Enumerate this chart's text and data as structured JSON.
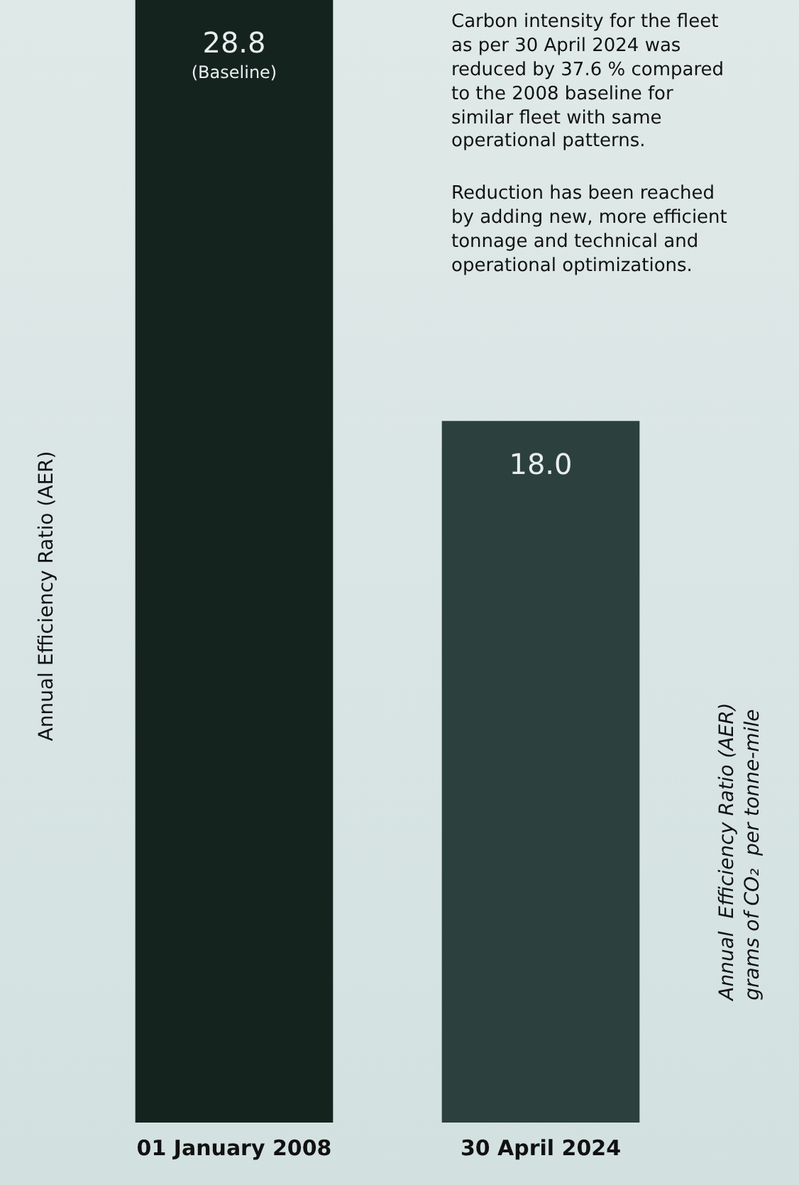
{
  "chart_data": {
    "type": "bar",
    "categories": [
      "01 January 2008",
      "30 April 2024"
    ],
    "values": [
      28.8,
      18.0
    ],
    "colors": [
      "#15231f",
      "#2c403d"
    ],
    "value_labels": [
      "28.8",
      "18.0"
    ],
    "ylabel": "Annual Efficiency Ratio (AER)",
    "y2label": "Annual  Efficiency Ratio (AER)\ngrams of CO₂  per tonne-mile",
    "annotations": [
      "(Baseline)",
      "Carbon intensity for the fleet as per 30 April 2024 was reduced by 37.6 % compared to the 2008 baseline for similar fleet with same operational patterns.",
      "Reduction has been reached by adding new, more efficient tonnage and technical and operational optimizations."
    ],
    "relative": false,
    "grid": false,
    "legend": false
  }
}
